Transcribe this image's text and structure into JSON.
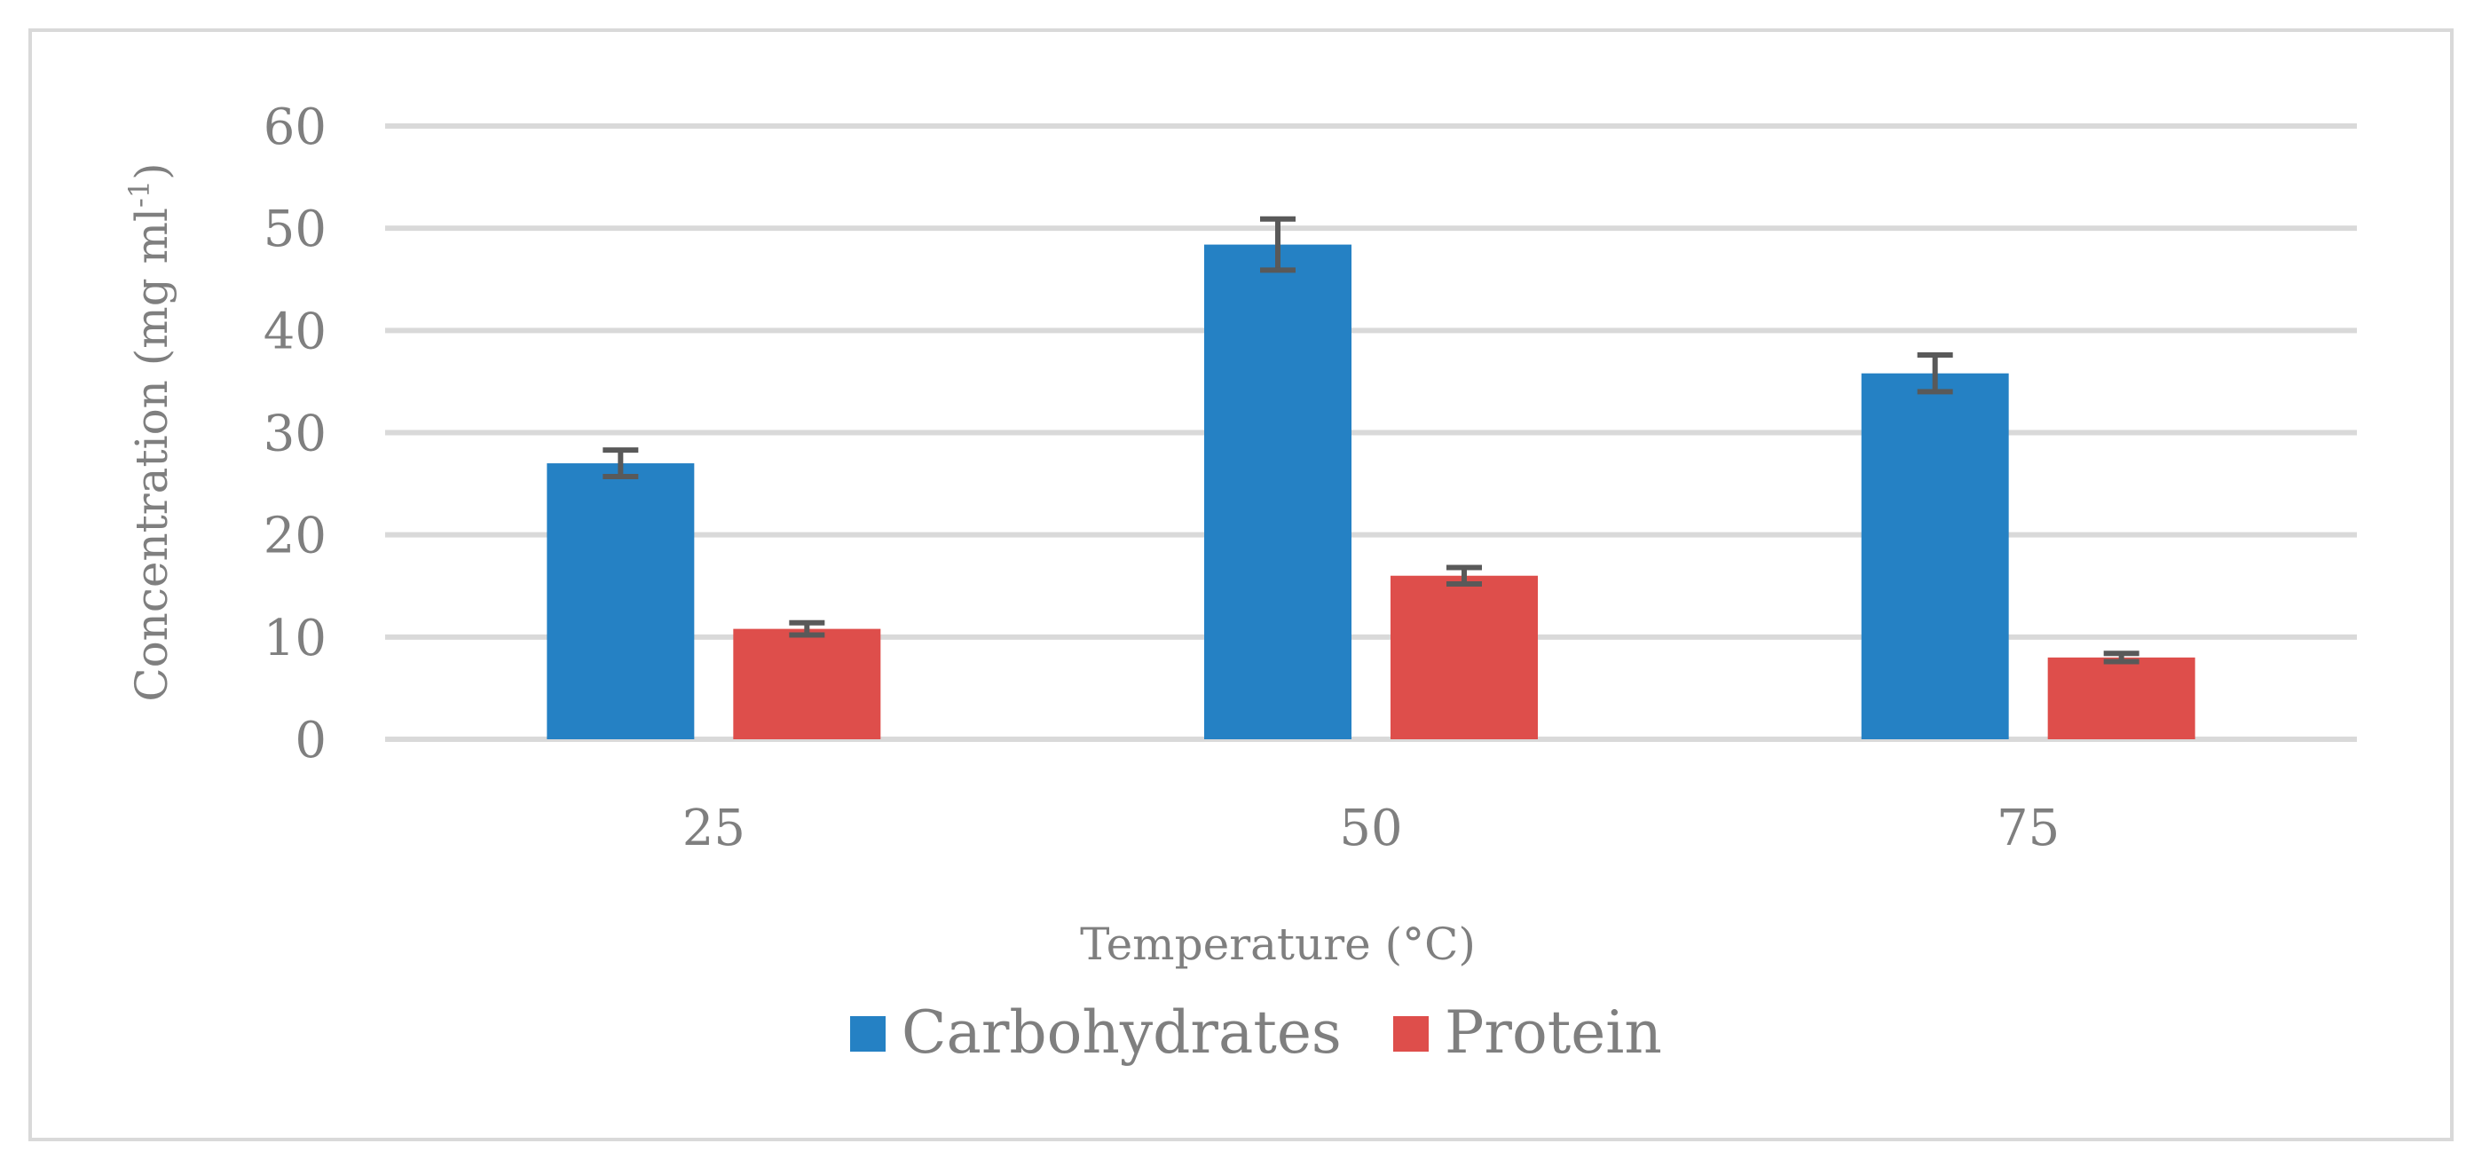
{
  "chart_data": {
    "type": "bar",
    "title": "",
    "xlabel": "Temperature (°C)",
    "ylabel": "Concentration (mg ml-1)",
    "ylabel_parts": {
      "main": "Concentration (mg ml",
      "superscript": "-1",
      "closing": ")"
    },
    "categories": [
      "25",
      "50",
      "75"
    ],
    "ylim": [
      0,
      60
    ],
    "yticks": [
      0,
      10,
      20,
      30,
      40,
      50,
      60
    ],
    "grid": true,
    "legend_position": "bottom",
    "series": [
      {
        "name": "Carbohydrates",
        "color": "#2581c4",
        "values": [
          27,
          48.4,
          35.8
        ],
        "errors": [
          1.3,
          2.5,
          1.8
        ]
      },
      {
        "name": "Protein",
        "color": "#de4e4b",
        "values": [
          10.8,
          16,
          8
        ],
        "errors": [
          0.6,
          0.8,
          0.4
        ]
      }
    ],
    "gridline_color": "#d9d9d9",
    "errorbar_color": "#595959"
  }
}
